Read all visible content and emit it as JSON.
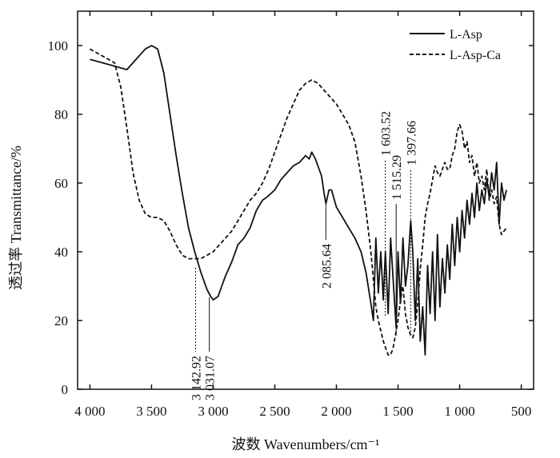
{
  "chart_data": {
    "type": "line",
    "xlabel": "波数 Wavenumbers/cm⁻¹",
    "ylabel": "透过率 Transmittance/%",
    "xlim": [
      4100,
      400
    ],
    "ylim": [
      0,
      110
    ],
    "x_ticks": [
      4000,
      3500,
      3000,
      2500,
      2000,
      1500,
      1000,
      500
    ],
    "x_tick_labels": [
      "4 000",
      "3 500",
      "3 000",
      "2 500",
      "2 000",
      "1 500",
      "1 000",
      "500"
    ],
    "y_ticks": [
      0,
      20,
      40,
      60,
      80,
      100
    ],
    "y_tick_labels": [
      "0",
      "20",
      "40",
      "60",
      "80",
      "100"
    ],
    "legend_position": "top-right",
    "series": [
      {
        "name": "L-Asp",
        "style": "solid",
        "color": "#111111",
        "x": [
          4000,
          3900,
          3800,
          3700,
          3600,
          3550,
          3500,
          3450,
          3400,
          3350,
          3300,
          3250,
          3200,
          3150,
          3100,
          3050,
          3020,
          3000,
          2960,
          2930,
          2900,
          2850,
          2800,
          2750,
          2700,
          2650,
          2600,
          2560,
          2500,
          2450,
          2400,
          2350,
          2300,
          2250,
          2220,
          2200,
          2170,
          2150,
          2120,
          2100,
          2085,
          2060,
          2040,
          2000,
          1950,
          1900,
          1850,
          1800,
          1760,
          1720,
          1700,
          1680,
          1660,
          1640,
          1620,
          1603,
          1580,
          1560,
          1540,
          1515,
          1500,
          1480,
          1460,
          1440,
          1420,
          1397,
          1380,
          1360,
          1340,
          1320,
          1300,
          1280,
          1260,
          1240,
          1220,
          1200,
          1180,
          1160,
          1140,
          1120,
          1100,
          1080,
          1060,
          1040,
          1020,
          1000,
          980,
          960,
          940,
          920,
          900,
          880,
          860,
          840,
          820,
          800,
          780,
          760,
          740,
          720,
          700,
          680,
          660,
          640,
          620
        ],
        "y": [
          96,
          95,
          94,
          93,
          97,
          99,
          100,
          99,
          92,
          80,
          68,
          57,
          47,
          40,
          34,
          29,
          27,
          26,
          27,
          30,
          33,
          37,
          42,
          44,
          47,
          52,
          55,
          56,
          58,
          61,
          63,
          65,
          66,
          68,
          67,
          69,
          67,
          65,
          62,
          57,
          54,
          58,
          58,
          53,
          50,
          47,
          44,
          40,
          34,
          25,
          20,
          44,
          28,
          40,
          26,
          40,
          22,
          44,
          32,
          18,
          40,
          25,
          44,
          30,
          36,
          49,
          40,
          20,
          38,
          14,
          24,
          10,
          36,
          22,
          40,
          20,
          45,
          24,
          38,
          28,
          42,
          32,
          48,
          36,
          50,
          40,
          52,
          44,
          55,
          48,
          57,
          50,
          60,
          52,
          58,
          54,
          61,
          56,
          63,
          58,
          66,
          48,
          60,
          55,
          58
        ]
      },
      {
        "name": "L-Asp-Ca",
        "style": "dashed",
        "color": "#111111",
        "x": [
          4000,
          3950,
          3900,
          3850,
          3800,
          3750,
          3700,
          3650,
          3600,
          3550,
          3500,
          3450,
          3400,
          3350,
          3300,
          3250,
          3200,
          3150,
          3100,
          3050,
          3000,
          2950,
          2900,
          2850,
          2800,
          2750,
          2700,
          2650,
          2600,
          2550,
          2500,
          2450,
          2400,
          2350,
          2300,
          2250,
          2200,
          2150,
          2100,
          2050,
          2000,
          1950,
          1900,
          1850,
          1800,
          1760,
          1720,
          1700,
          1680,
          1660,
          1640,
          1620,
          1600,
          1580,
          1560,
          1540,
          1520,
          1500,
          1480,
          1460,
          1440,
          1420,
          1400,
          1380,
          1360,
          1340,
          1320,
          1300,
          1280,
          1260,
          1240,
          1220,
          1200,
          1180,
          1160,
          1140,
          1120,
          1100,
          1080,
          1060,
          1040,
          1020,
          1000,
          980,
          960,
          940,
          920,
          900,
          880,
          860,
          840,
          820,
          800,
          780,
          760,
          740,
          720,
          700,
          680,
          660,
          640,
          620
        ],
        "y": [
          99,
          98,
          97,
          96,
          95,
          88,
          76,
          63,
          55,
          51,
          50,
          50,
          49,
          46,
          42,
          39,
          38,
          38,
          38,
          39,
          40,
          42,
          44,
          46,
          49,
          52,
          55,
          57,
          60,
          64,
          69,
          74,
          79,
          83,
          87,
          89,
          90,
          89,
          87,
          85,
          83,
          80,
          77,
          72,
          62,
          52,
          40,
          32,
          24,
          20,
          17,
          14,
          12,
          10,
          10,
          12,
          16,
          20,
          26,
          30,
          22,
          18,
          16,
          15,
          18,
          25,
          35,
          42,
          50,
          54,
          57,
          61,
          65,
          63,
          62,
          64,
          66,
          64,
          64,
          68,
          70,
          75,
          77,
          75,
          70,
          72,
          66,
          68,
          62,
          66,
          60,
          62,
          58,
          64,
          55,
          58,
          54,
          56,
          48,
          45,
          46,
          47
        ]
      }
    ],
    "annotations": [
      {
        "label": "3 142.92",
        "x": 3142.92,
        "y": 38,
        "line": "dotted"
      },
      {
        "label": "3 031.07",
        "x": 3031.07,
        "y": 27,
        "line": "solid"
      },
      {
        "label": "2 085.64",
        "x": 2085.64,
        "y": 54,
        "line": "solid"
      },
      {
        "label": "1 603.52",
        "x": 1603.52,
        "y": 12,
        "line": "dotted"
      },
      {
        "label": "1 515.29",
        "x": 1515.29,
        "y": 22,
        "line": "solid"
      },
      {
        "label": "1 397.66",
        "x": 1397.66,
        "y": 16,
        "line": "dotted"
      }
    ]
  }
}
